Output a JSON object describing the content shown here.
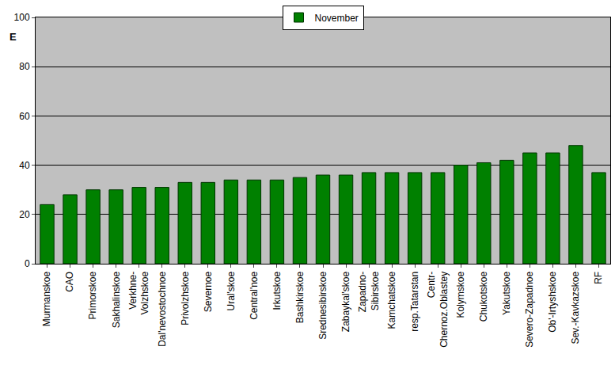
{
  "chart_data": {
    "type": "bar",
    "y_label": "E",
    "categories": [
      "Murmanskoe",
      "CAO",
      "Primorskoe",
      "Sakhalinskoe",
      "Verkhne-\nVolzhskoe",
      "Dal'nevostochnoe",
      "Privolzhskoe",
      "Severnoe",
      "Ural'skoe",
      "Central'noe",
      "Irkutskoe",
      "Bashkirskoe",
      "Srednesibirskoe",
      "Zabaykal'skoe",
      "Zapadno-\nSibirskoe",
      "Kamchatskoe",
      "resp.Tatarstan",
      "Centr-\nChernoz.Oblastey",
      "Kolymskoe",
      "Chukotskoe",
      "Yakutskoe",
      "Severo-Zapadnoe",
      "Ob'-Irtyshskoe",
      "Sev.-Kavkazskoe",
      "RF"
    ],
    "series": [
      {
        "name": "November",
        "color": "#008000",
        "values": [
          24,
          28,
          30,
          30,
          31,
          31,
          33,
          33,
          34,
          34,
          34,
          35,
          36,
          36,
          37,
          37,
          37,
          37,
          40,
          41,
          42,
          45,
          45,
          48,
          37
        ]
      }
    ],
    "ylim": [
      0,
      100
    ],
    "yticks": [
      0,
      20,
      40,
      60,
      80,
      100
    ],
    "grid": true,
    "legend": "top"
  }
}
